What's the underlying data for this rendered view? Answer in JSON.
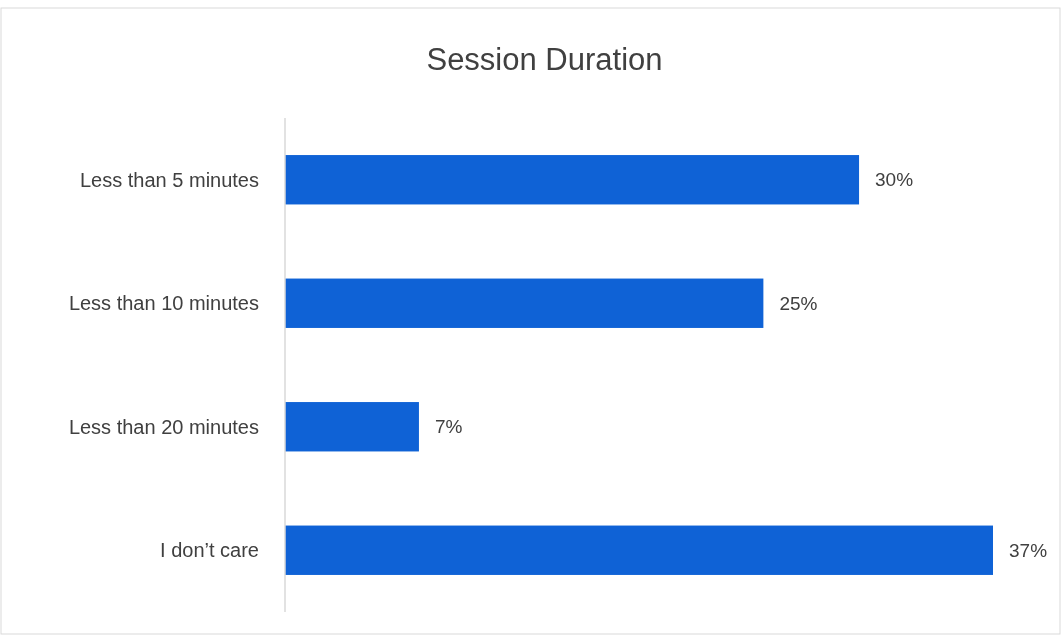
{
  "chart_data": {
    "type": "bar",
    "orientation": "horizontal",
    "title": "Session Duration",
    "categories": [
      "Less than 5 minutes",
      "Less than 10 minutes",
      "Less than 20 minutes",
      "I don’t care"
    ],
    "values": [
      30,
      25,
      7,
      37
    ],
    "value_labels": [
      "30%",
      "25%",
      "7%",
      "37%"
    ],
    "color": "#0f62d6"
  }
}
